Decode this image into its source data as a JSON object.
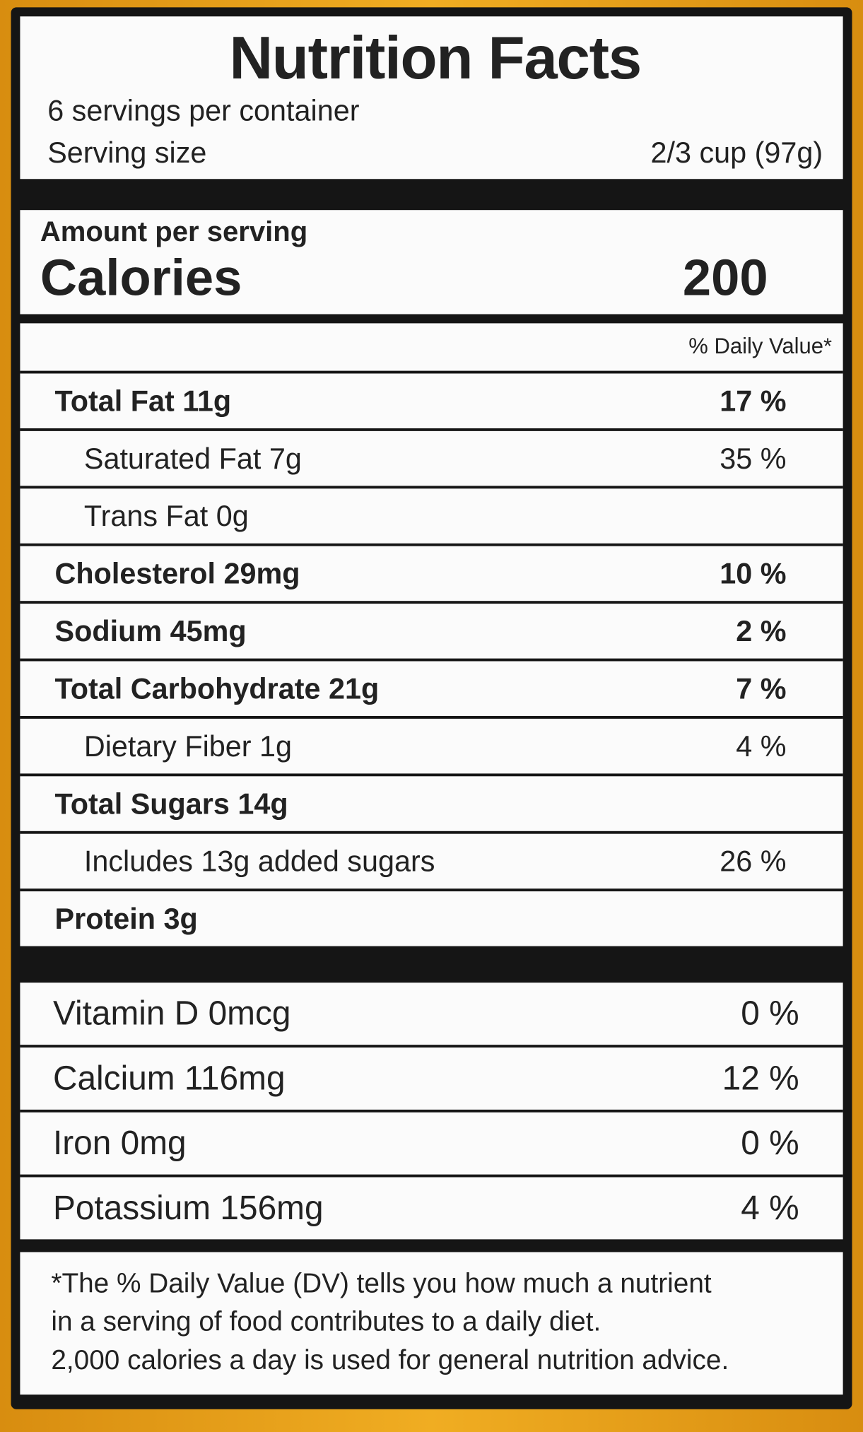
{
  "header": {
    "title": "Nutrition Facts",
    "servings": "6 servings per container",
    "serving_size_label": "Serving size",
    "serving_size_value": "2/3 cup (97g)"
  },
  "calories": {
    "amount_per_serving": "Amount per serving",
    "label": "Calories",
    "value": "200"
  },
  "daily_value_header": "% Daily Value*",
  "nutrients": [
    [
      "Total Fat 11g",
      "17 %"
    ],
    [
      "Saturated Fat 7g",
      "35 %"
    ],
    [
      "Trans Fat 0g"
    ],
    [
      "Cholesterol 29mg",
      "10 %"
    ],
    [
      "Sodium 45mg",
      "2 %"
    ],
    [
      "Total Carbohydrate 21g",
      "7 %"
    ],
    [
      "Dietary Fiber 1g",
      "4 %"
    ],
    [
      "Total Sugars 14g"
    ],
    [
      "Includes 13g added sugars",
      "26 %"
    ],
    [
      "Protein 3g"
    ]
  ],
  "minerals": [
    [
      "Vitamin D 0mcg",
      "0 %"
    ],
    [
      "Calcium 116mg",
      "12 %"
    ],
    [
      "Iron 0mg",
      "0 %"
    ],
    [
      "Potassium 156mg",
      "4 %"
    ]
  ],
  "footnote": [
    "*The % Daily Value (DV) tells you how much a nutrient",
    "in a serving of food contributes to a daily diet.",
    "2,000 calories a day is used for general nutrition advice."
  ]
}
